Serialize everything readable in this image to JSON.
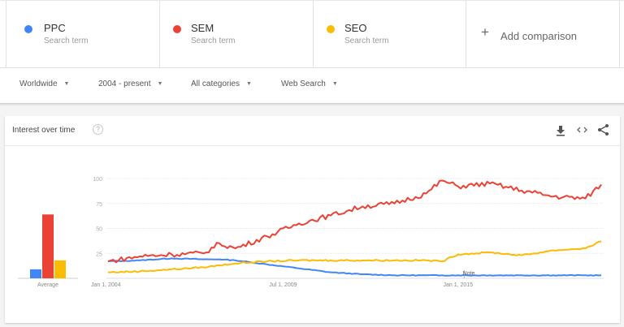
{
  "terms": [
    {
      "name": "PPC",
      "sub": "Search term",
      "color": "#4285f4"
    },
    {
      "name": "SEM",
      "sub": "Search term",
      "color": "#ea4335"
    },
    {
      "name": "SEO",
      "sub": "Search term",
      "color": "#fbbc04"
    }
  ],
  "add_comparison": {
    "icon": "+",
    "label": "Add comparison"
  },
  "filters": [
    {
      "label": "Worldwide"
    },
    {
      "label": "2004 - present"
    },
    {
      "label": "All categories"
    },
    {
      "label": "Web Search"
    }
  ],
  "card": {
    "title": "Interest over time",
    "help_icon": "?",
    "actions": [
      "download-icon",
      "embed-icon",
      "share-icon"
    ]
  },
  "chart_data": [
    {
      "type": "bar",
      "title": "Average",
      "categories": [
        "PPC",
        "SEM",
        "SEO"
      ],
      "values": [
        9,
        64,
        18
      ],
      "colors": [
        "#4285f4",
        "#ea4335",
        "#fbbc04"
      ],
      "xlabel": "Average",
      "ylim": [
        0,
        100
      ]
    },
    {
      "type": "line",
      "title": "Interest over time",
      "x_tick_labels": [
        "Jan 1, 2004",
        "Jul 1, 2009",
        "Jan 1, 2015"
      ],
      "y_ticks": [
        25,
        50,
        75,
        100
      ],
      "ylim": [
        0,
        100
      ],
      "grid": true,
      "annotations": [
        "Note"
      ],
      "x": [
        2004.0,
        2005.0,
        2006.0,
        2007.0,
        2007.5,
        2008.0,
        2009.0,
        2010.0,
        2011.0,
        2012.0,
        2013.0,
        2014.0,
        2014.5,
        2015.0,
        2016.0,
        2017.0,
        2018.0,
        2019.0,
        2019.5
      ],
      "series": [
        {
          "name": "PPC",
          "color": "#4285f4",
          "values": [
            17,
            18,
            20,
            19,
            19,
            18,
            14,
            10,
            6,
            4,
            3,
            3,
            3,
            3,
            3,
            3,
            3,
            3,
            3
          ]
        },
        {
          "name": "SEM",
          "color": "#ea4335",
          "values": [
            17,
            22,
            24,
            25,
            35,
            30,
            42,
            55,
            63,
            72,
            75,
            85,
            98,
            92,
            95,
            88,
            82,
            80,
            94
          ]
        },
        {
          "name": "SEO",
          "color": "#fbbc04",
          "values": [
            6,
            7,
            9,
            11,
            13,
            15,
            17,
            18,
            18,
            18,
            18,
            18,
            17,
            24,
            26,
            23,
            28,
            30,
            37
          ]
        }
      ]
    }
  ]
}
